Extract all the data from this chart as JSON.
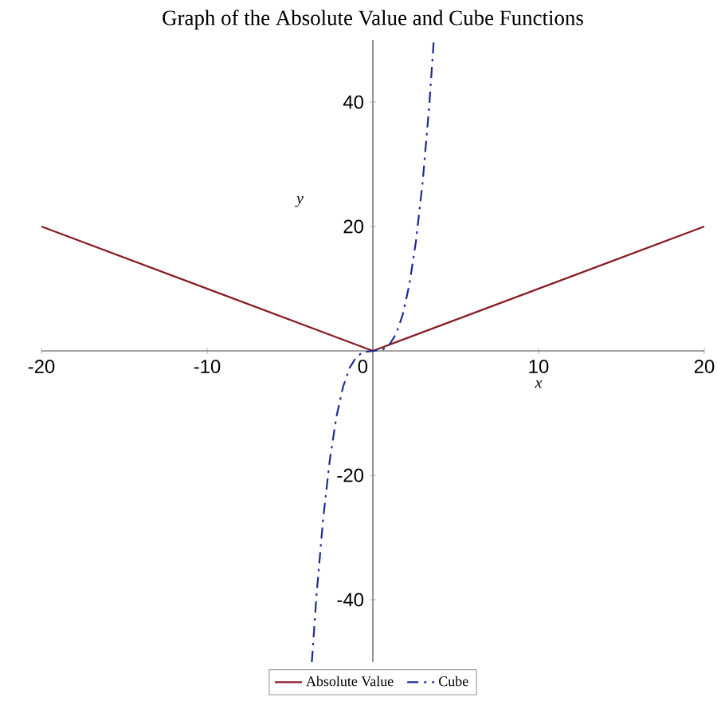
{
  "chart_data": {
    "type": "line",
    "title": "Graph of the Absolute Value and Cube Functions",
    "xlabel": "x",
    "ylabel": "y",
    "xlim": [
      -20,
      20
    ],
    "ylim": [
      -50,
      50
    ],
    "xticks": [
      -20,
      -10,
      0,
      10,
      20
    ],
    "yticks": [
      -40,
      -20,
      20,
      40
    ],
    "legend": "bottom",
    "grid": false,
    "marker": "none",
    "series": [
      {
        "name": "Absolute Value",
        "color": "#8B1A22",
        "line_style": "solid",
        "x": [
          -20,
          0,
          20
        ],
        "values": [
          20,
          0,
          20
        ]
      },
      {
        "name": "Cube",
        "color": "#1E2A96",
        "line_style": "dashdot",
        "x": [
          -3.68,
          -3.4,
          -3,
          -2.6,
          -2.2,
          -1.8,
          -1.4,
          -1,
          -0.6,
          0,
          0.6,
          1,
          1.4,
          1.8,
          2.2,
          2.6,
          3,
          3.4,
          3.68
        ],
        "values": [
          -50,
          -39.3,
          -27,
          -17.6,
          -10.6,
          -5.8,
          -2.7,
          -1,
          -0.2,
          0,
          0.2,
          1,
          2.7,
          5.8,
          10.6,
          17.6,
          27,
          39.3,
          50
        ]
      }
    ]
  }
}
